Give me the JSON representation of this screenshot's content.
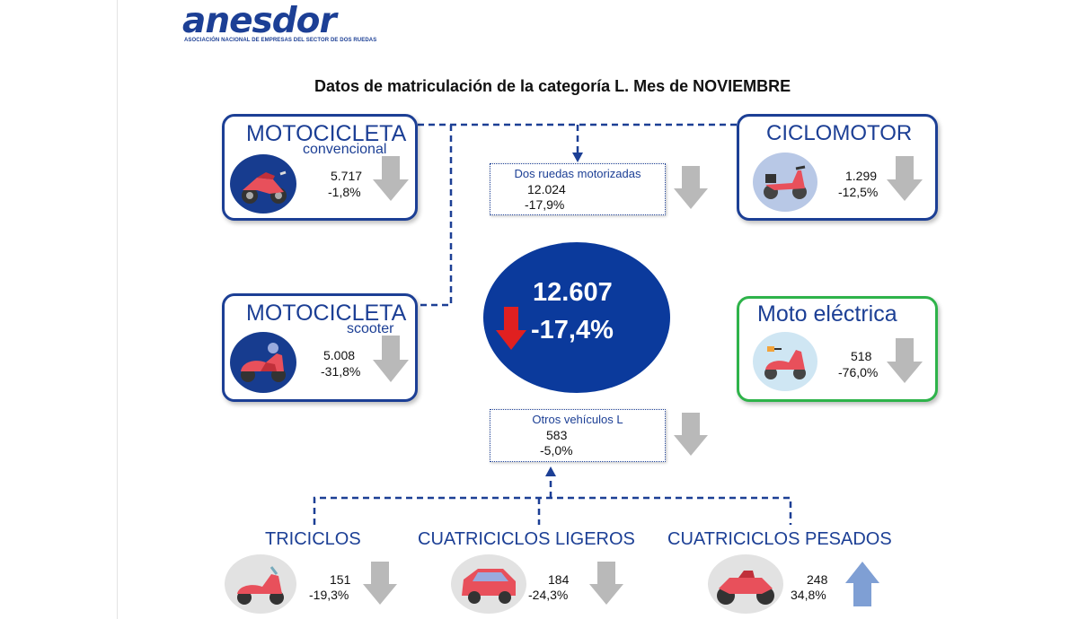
{
  "logo": {
    "name": "anesdor",
    "tagline": "ASOCIACIÓN NACIONAL DE EMPRESAS DEL SECTOR DE DOS RUEDAS"
  },
  "title": "Datos de matriculación de la categoría L. Mes de NOVIEMBRE",
  "total": {
    "value": "12.607",
    "change": "-17,4%",
    "trend": "down"
  },
  "dos_ruedas": {
    "label": "Dos ruedas motorizadas",
    "value": "12.024",
    "change": "-17,9%",
    "trend": "down"
  },
  "otros": {
    "label": "Otros vehículos L",
    "value": "583",
    "change": "-5,0%",
    "trend": "down"
  },
  "motocicleta_convencional": {
    "title": "MOTOCICLETA",
    "subtitle": "convencional",
    "value": "5.717",
    "change": "-1,8%",
    "trend": "down",
    "icon": "motorcycle-icon"
  },
  "motocicleta_scooter": {
    "title": "MOTOCICLETA",
    "subtitle": "scooter",
    "value": "5.008",
    "change": "-31,8%",
    "trend": "down",
    "icon": "scooter-icon"
  },
  "ciclomotor": {
    "title": "CICLOMOTOR",
    "value": "1.299",
    "change": "-12,5%",
    "trend": "down",
    "icon": "moped-icon"
  },
  "moto_electrica": {
    "title": "Moto eléctrica",
    "value": "518",
    "change": "-76,0%",
    "trend": "down",
    "icon": "electric-scooter-icon"
  },
  "triciclos": {
    "title": "TRICICLOS",
    "value": "151",
    "change": "-19,3%",
    "trend": "down",
    "icon": "trike-icon"
  },
  "cuatriciclos_ligeros": {
    "title": "CUATRICICLOS LIGEROS",
    "value": "184",
    "change": "-24,3%",
    "trend": "down",
    "icon": "microcar-icon"
  },
  "cuatriciclos_pesados": {
    "title": "CUATRICICLOS PESADOS",
    "value": "248",
    "change": "34,8%",
    "trend": "up",
    "icon": "quad-icon"
  },
  "colors": {
    "primary_blue": "#1c3f95",
    "circle_blue": "#0b3a9c",
    "electric_green": "#2eb34a",
    "arrow_down_gray": "#b9b9b9",
    "arrow_up_blue": "#7f9fd4",
    "alert_red": "#e02020"
  }
}
